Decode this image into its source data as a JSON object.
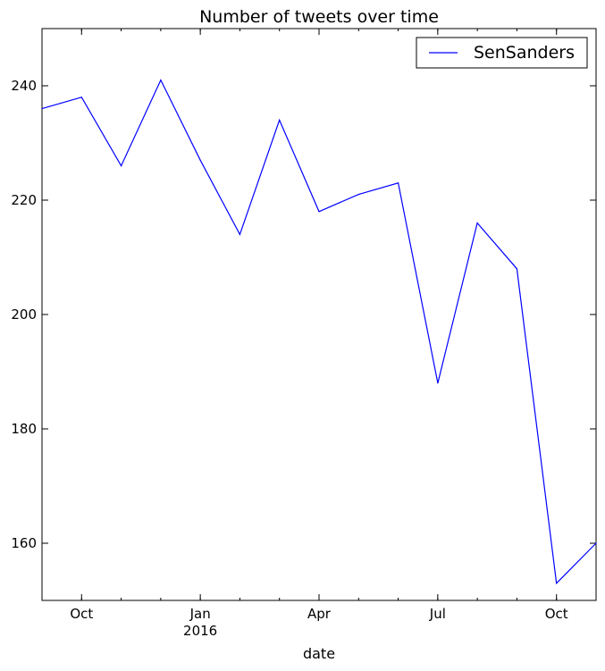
{
  "chart_data": {
    "type": "line",
    "title": "Number of tweets over time",
    "xlabel": "date",
    "ylabel": "",
    "ylim": [
      150,
      250
    ],
    "yticks": [
      160,
      180,
      200,
      220,
      240
    ],
    "xlim": [
      "2015-09",
      "2016-11"
    ],
    "x": [
      "2015-09",
      "2015-10",
      "2015-11",
      "2015-12",
      "2016-01",
      "2016-02",
      "2016-03",
      "2016-04",
      "2016-05",
      "2016-06",
      "2016-07",
      "2016-08",
      "2016-09",
      "2016-10",
      "2016-11"
    ],
    "xticks": [
      {
        "at": "2015-10",
        "label": "Oct",
        "sub": ""
      },
      {
        "at": "2016-01",
        "label": "Jan",
        "sub": "2016"
      },
      {
        "at": "2016-04",
        "label": "Apr",
        "sub": ""
      },
      {
        "at": "2016-07",
        "label": "Jul",
        "sub": ""
      },
      {
        "at": "2016-10",
        "label": "Oct",
        "sub": ""
      }
    ],
    "series": [
      {
        "name": "SenSanders",
        "color": "#0000ff",
        "values": [
          236,
          238,
          226,
          241,
          227,
          214,
          234,
          218,
          221,
          223,
          188,
          216,
          208,
          153,
          160
        ]
      }
    ],
    "legend": "top-right",
    "grid": false
  }
}
